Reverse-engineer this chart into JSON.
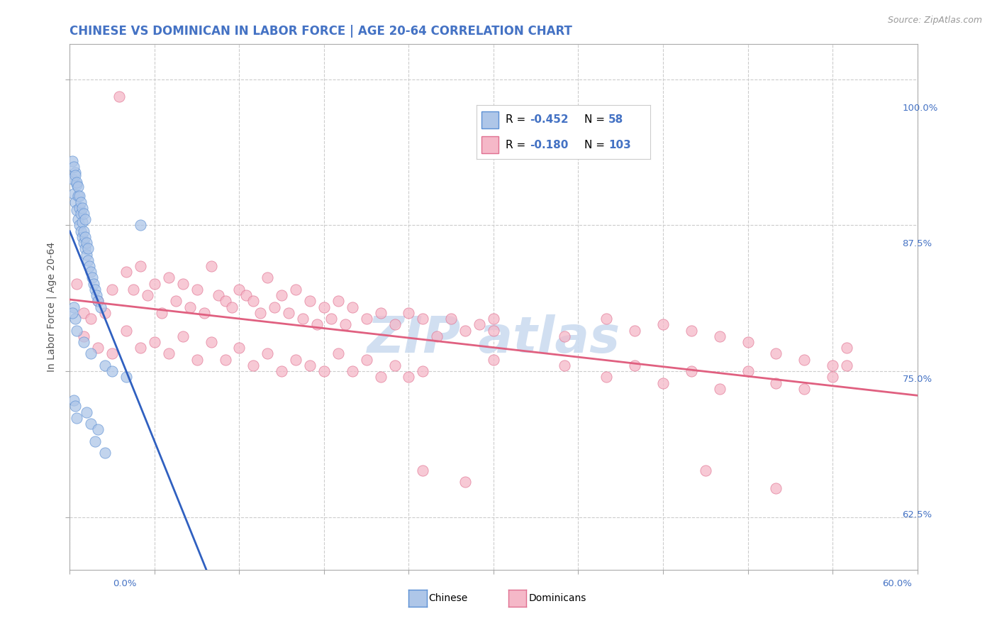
{
  "title": "CHINESE VS DOMINICAN IN LABOR FORCE | AGE 20-64 CORRELATION CHART",
  "source": "Source: ZipAtlas.com",
  "ylabel_label": "In Labor Force | Age 20-64",
  "xlim": [
    0.0,
    60.0
  ],
  "ylim": [
    58.0,
    103.0
  ],
  "yticks": [
    62.5,
    75.0,
    87.5,
    100.0
  ],
  "xticks": [
    0.0,
    6.0,
    12.0,
    18.0,
    24.0,
    30.0,
    36.0,
    42.0,
    48.0,
    54.0,
    60.0
  ],
  "legend_R1": "-0.452",
  "legend_N1": "58",
  "legend_R2": "-0.180",
  "legend_N2": "103",
  "chinese_fill": "#aec6e8",
  "chinese_edge": "#5b8fd4",
  "dominican_fill": "#f5b8c8",
  "dominican_edge": "#e07090",
  "chinese_line_color": "#3060c0",
  "dominican_line_color": "#e06080",
  "dashed_line_color": "#90b8d8",
  "title_color": "#4472c4",
  "right_label_color": "#4472c4",
  "bottom_label_color": "#4472c4",
  "watermark_color": "#ccdcf0",
  "chinese_scatter": [
    [
      0.2,
      91.5
    ],
    [
      0.3,
      90.2
    ],
    [
      0.4,
      89.5
    ],
    [
      0.5,
      88.8
    ],
    [
      0.6,
      88.0
    ],
    [
      0.7,
      87.5
    ],
    [
      0.8,
      87.0
    ],
    [
      0.9,
      86.5
    ],
    [
      1.0,
      86.0
    ],
    [
      1.1,
      85.5
    ],
    [
      1.2,
      85.0
    ],
    [
      1.3,
      84.5
    ],
    [
      1.4,
      84.0
    ],
    [
      1.5,
      83.5
    ],
    [
      1.6,
      83.0
    ],
    [
      1.7,
      82.5
    ],
    [
      1.8,
      82.0
    ],
    [
      1.9,
      81.5
    ],
    [
      2.0,
      81.0
    ],
    [
      2.2,
      80.5
    ],
    [
      0.4,
      92.0
    ],
    [
      0.5,
      91.0
    ],
    [
      0.6,
      90.0
    ],
    [
      0.7,
      89.0
    ],
    [
      0.8,
      88.5
    ],
    [
      0.9,
      87.8
    ],
    [
      1.0,
      87.0
    ],
    [
      1.1,
      86.5
    ],
    [
      1.2,
      86.0
    ],
    [
      1.3,
      85.5
    ],
    [
      0.2,
      93.0
    ],
    [
      0.3,
      92.5
    ],
    [
      0.4,
      91.8
    ],
    [
      0.5,
      91.2
    ],
    [
      0.6,
      90.8
    ],
    [
      0.7,
      90.0
    ],
    [
      0.8,
      89.5
    ],
    [
      0.9,
      89.0
    ],
    [
      1.0,
      88.5
    ],
    [
      1.1,
      88.0
    ],
    [
      0.3,
      80.5
    ],
    [
      0.4,
      79.5
    ],
    [
      0.5,
      78.5
    ],
    [
      1.0,
      77.5
    ],
    [
      1.5,
      76.5
    ],
    [
      2.5,
      75.5
    ],
    [
      3.0,
      75.0
    ],
    [
      4.0,
      74.5
    ],
    [
      5.0,
      87.5
    ],
    [
      0.2,
      80.0
    ],
    [
      0.3,
      72.5
    ],
    [
      0.4,
      72.0
    ],
    [
      0.5,
      71.0
    ],
    [
      1.2,
      71.5
    ],
    [
      1.5,
      70.5
    ],
    [
      2.0,
      70.0
    ],
    [
      1.8,
      69.0
    ],
    [
      2.5,
      68.0
    ]
  ],
  "dominican_scatter": [
    [
      0.5,
      82.5
    ],
    [
      1.0,
      80.0
    ],
    [
      1.5,
      79.5
    ],
    [
      2.0,
      81.0
    ],
    [
      2.5,
      80.0
    ],
    [
      3.0,
      82.0
    ],
    [
      3.5,
      98.5
    ],
    [
      4.0,
      83.5
    ],
    [
      4.5,
      82.0
    ],
    [
      5.0,
      84.0
    ],
    [
      5.5,
      81.5
    ],
    [
      6.0,
      82.5
    ],
    [
      6.5,
      80.0
    ],
    [
      7.0,
      83.0
    ],
    [
      7.5,
      81.0
    ],
    [
      8.0,
      82.5
    ],
    [
      8.5,
      80.5
    ],
    [
      9.0,
      82.0
    ],
    [
      9.5,
      80.0
    ],
    [
      10.0,
      84.0
    ],
    [
      10.5,
      81.5
    ],
    [
      11.0,
      81.0
    ],
    [
      11.5,
      80.5
    ],
    [
      12.0,
      82.0
    ],
    [
      12.5,
      81.5
    ],
    [
      13.0,
      81.0
    ],
    [
      13.5,
      80.0
    ],
    [
      14.0,
      83.0
    ],
    [
      14.5,
      80.5
    ],
    [
      15.0,
      81.5
    ],
    [
      15.5,
      80.0
    ],
    [
      16.0,
      82.0
    ],
    [
      16.5,
      79.5
    ],
    [
      17.0,
      81.0
    ],
    [
      17.5,
      79.0
    ],
    [
      18.0,
      80.5
    ],
    [
      18.5,
      79.5
    ],
    [
      19.0,
      81.0
    ],
    [
      19.5,
      79.0
    ],
    [
      20.0,
      80.5
    ],
    [
      21.0,
      79.5
    ],
    [
      22.0,
      80.0
    ],
    [
      23.0,
      79.0
    ],
    [
      24.0,
      80.0
    ],
    [
      25.0,
      79.5
    ],
    [
      26.0,
      78.0
    ],
    [
      27.0,
      79.5
    ],
    [
      28.0,
      78.5
    ],
    [
      29.0,
      79.0
    ],
    [
      30.0,
      78.5
    ],
    [
      1.0,
      78.0
    ],
    [
      2.0,
      77.0
    ],
    [
      3.0,
      76.5
    ],
    [
      4.0,
      78.5
    ],
    [
      5.0,
      77.0
    ],
    [
      6.0,
      77.5
    ],
    [
      7.0,
      76.5
    ],
    [
      8.0,
      78.0
    ],
    [
      9.0,
      76.0
    ],
    [
      10.0,
      77.5
    ],
    [
      11.0,
      76.0
    ],
    [
      12.0,
      77.0
    ],
    [
      13.0,
      75.5
    ],
    [
      14.0,
      76.5
    ],
    [
      15.0,
      75.0
    ],
    [
      16.0,
      76.0
    ],
    [
      17.0,
      75.5
    ],
    [
      18.0,
      75.0
    ],
    [
      19.0,
      76.5
    ],
    [
      20.0,
      75.0
    ],
    [
      21.0,
      76.0
    ],
    [
      22.0,
      74.5
    ],
    [
      23.0,
      75.5
    ],
    [
      24.0,
      74.5
    ],
    [
      25.0,
      75.0
    ],
    [
      30.0,
      79.5
    ],
    [
      35.0,
      78.0
    ],
    [
      38.0,
      79.5
    ],
    [
      40.0,
      78.5
    ],
    [
      42.0,
      79.0
    ],
    [
      44.0,
      78.5
    ],
    [
      46.0,
      78.0
    ],
    [
      48.0,
      77.5
    ],
    [
      50.0,
      76.5
    ],
    [
      52.0,
      76.0
    ],
    [
      54.0,
      75.5
    ],
    [
      55.0,
      77.0
    ],
    [
      30.0,
      76.0
    ],
    [
      35.0,
      75.5
    ],
    [
      38.0,
      74.5
    ],
    [
      40.0,
      75.5
    ],
    [
      42.0,
      74.0
    ],
    [
      44.0,
      75.0
    ],
    [
      46.0,
      73.5
    ],
    [
      48.0,
      75.0
    ],
    [
      50.0,
      74.0
    ],
    [
      52.0,
      73.5
    ],
    [
      54.0,
      74.5
    ],
    [
      55.0,
      75.5
    ],
    [
      25.0,
      66.5
    ],
    [
      28.0,
      65.5
    ],
    [
      45.0,
      66.5
    ],
    [
      50.0,
      65.0
    ]
  ]
}
